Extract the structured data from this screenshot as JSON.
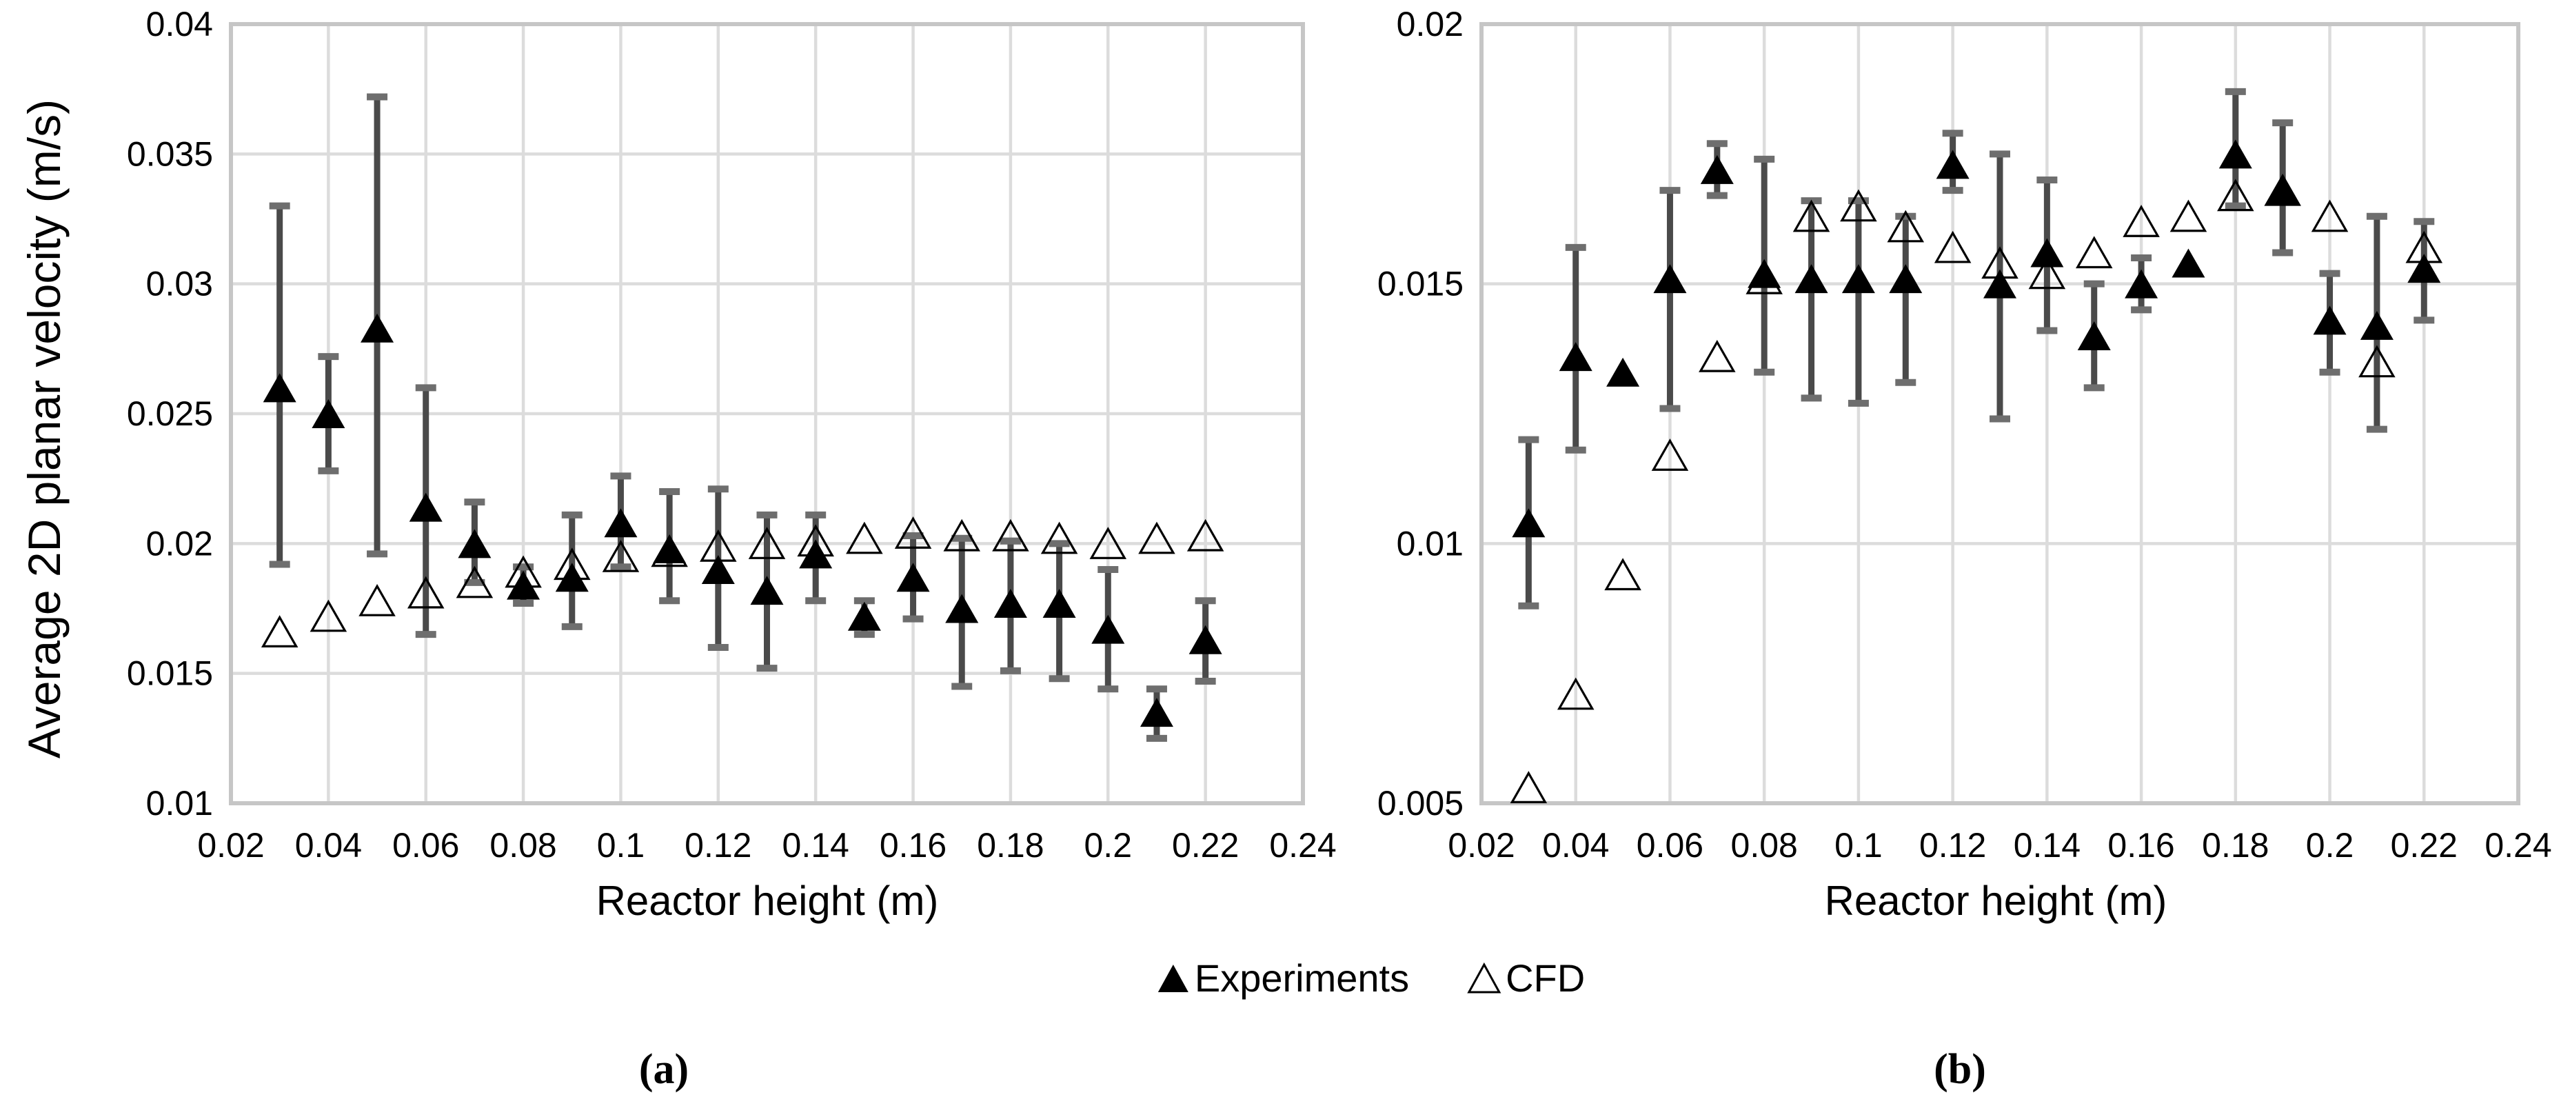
{
  "y_axis_title": "Average 2D planar velocity (m/s)",
  "legend": {
    "items": [
      {
        "label": "Experiments",
        "marker": "filled-triangle"
      },
      {
        "label": "CFD",
        "marker": "open-triangle"
      }
    ]
  },
  "captions": {
    "a": "(a)",
    "b": "(b)"
  },
  "colors": {
    "marker": "#000000",
    "error_bar": "#4a4a4a",
    "error_cap": "#6e6e6e",
    "grid": "#dcdcdc",
    "border": "#c6c6c6",
    "text": "#000000",
    "background": "#ffffff"
  },
  "chart_data": [
    {
      "id": "a",
      "type": "scatter",
      "title": "",
      "xlabel": "Reactor height (m)",
      "ylabel": "Average 2D planar velocity (m/s)",
      "xlim": [
        0.02,
        0.24
      ],
      "ylim": [
        0.01,
        0.04
      ],
      "xticks": [
        "0.02",
        "0.04",
        "0.06",
        "0.08",
        "0.1",
        "0.12",
        "0.14",
        "0.16",
        "0.18",
        "0.2",
        "0.22",
        "0.24"
      ],
      "yticks": [
        "0.04",
        "0.035",
        "0.03",
        "0.025",
        "0.02",
        "0.015",
        "0.01"
      ],
      "grid": true,
      "x": [
        0.03,
        0.04,
        0.05,
        0.06,
        0.07,
        0.08,
        0.09,
        0.1,
        0.11,
        0.12,
        0.13,
        0.14,
        0.15,
        0.16,
        0.17,
        0.18,
        0.19,
        0.2,
        0.21,
        0.22
      ],
      "series": [
        {
          "name": "Experiments",
          "marker": "filled-triangle",
          "values": [
            0.026,
            0.025,
            0.0283,
            0.0214,
            0.02,
            0.0184,
            0.0187,
            0.0208,
            0.0198,
            0.019,
            0.0182,
            0.0196,
            0.0172,
            0.0187,
            0.0175,
            0.0177,
            0.0177,
            0.0167,
            0.0135,
            0.0163
          ],
          "err_lo": [
            0.0192,
            0.0228,
            0.0196,
            0.0165,
            0.0185,
            0.0177,
            0.0168,
            0.0191,
            0.0178,
            0.016,
            0.0152,
            0.0178,
            0.0165,
            0.0171,
            0.0145,
            0.0151,
            0.0148,
            0.0144,
            0.0125,
            0.0147
          ],
          "err_hi": [
            0.033,
            0.0272,
            0.0372,
            0.026,
            0.0216,
            0.0191,
            0.0211,
            0.0226,
            0.022,
            0.0221,
            0.0211,
            0.0211,
            0.0178,
            0.0203,
            0.0202,
            0.0201,
            0.02,
            0.019,
            0.0144,
            0.0178
          ]
        },
        {
          "name": "CFD",
          "marker": "open-triangle",
          "values": [
            0.0166,
            0.0172,
            0.0178,
            0.0181,
            0.0185,
            0.0189,
            0.0192,
            0.0195,
            0.0197,
            0.0199,
            0.02,
            0.0201,
            0.0202,
            0.0204,
            0.0203,
            0.0203,
            0.0202,
            0.02,
            0.0202,
            0.0203
          ]
        }
      ]
    },
    {
      "id": "b",
      "type": "scatter",
      "title": "",
      "xlabel": "Reactor height (m)",
      "ylabel": "",
      "xlim": [
        0.02,
        0.24
      ],
      "ylim": [
        0.005,
        0.02
      ],
      "xticks": [
        "0.02",
        "0.04",
        "0.06",
        "0.08",
        "0.1",
        "0.12",
        "0.14",
        "0.16",
        "0.18",
        "0.2",
        "0.22",
        "0.24"
      ],
      "yticks": [
        "0.02",
        "0.015",
        "0.01",
        "0.005"
      ],
      "grid": true,
      "x": [
        0.03,
        0.04,
        0.05,
        0.06,
        0.07,
        0.08,
        0.09,
        0.1,
        0.11,
        0.12,
        0.13,
        0.14,
        0.15,
        0.16,
        0.17,
        0.18,
        0.19,
        0.2,
        0.21,
        0.22
      ],
      "series": [
        {
          "name": "Experiments",
          "marker": "filled-triangle",
          "values": [
            0.0104,
            0.0136,
            0.0133,
            0.0151,
            0.0172,
            0.0152,
            0.0151,
            0.0151,
            0.0151,
            0.0173,
            0.015,
            0.0156,
            0.014,
            0.015,
            0.0154,
            0.0175,
            0.0168,
            0.0143,
            0.0142,
            0.0153
          ],
          "err_lo": [
            0.0088,
            0.0118,
            null,
            0.0126,
            0.0167,
            0.0133,
            0.0128,
            0.0127,
            0.0131,
            0.0168,
            0.0124,
            0.0141,
            0.013,
            0.0145,
            null,
            0.0165,
            0.0156,
            0.0133,
            0.0122,
            0.0143
          ],
          "err_hi": [
            0.012,
            0.0157,
            null,
            0.0168,
            0.0177,
            0.0174,
            0.0166,
            0.0166,
            0.0163,
            0.0179,
            0.0175,
            0.017,
            0.015,
            0.0155,
            null,
            0.0187,
            0.0181,
            0.0152,
            0.0163,
            0.0162
          ]
        },
        {
          "name": "CFD",
          "marker": "open-triangle",
          "values": [
            0.0053,
            0.0071,
            0.0094,
            0.0117,
            0.0136,
            0.0151,
            0.0163,
            0.0165,
            0.0161,
            0.0157,
            0.0154,
            0.0152,
            0.0156,
            0.0162,
            0.0163,
            0.0167,
            0.0168,
            0.0163,
            0.0135,
            0.0157
          ]
        }
      ]
    }
  ]
}
